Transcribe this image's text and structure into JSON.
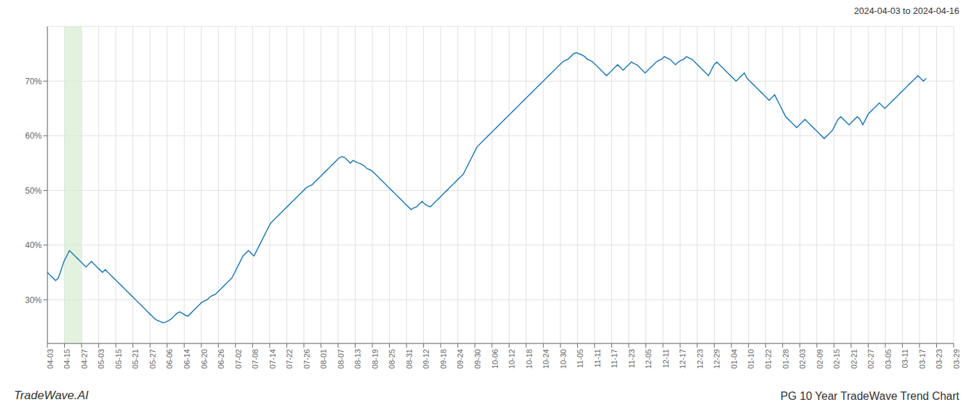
{
  "chart_data": {
    "type": "line",
    "title": "PG 10 Year TradeWave Trend Chart",
    "subtitle": "2024-04-03 to 2024-04-16",
    "annotations": [
      "TradeWave.AI"
    ],
    "color": "#1f77b4",
    "grid": true,
    "xlim": [
      0,
      329
    ],
    "xticks": [
      {
        "value": 0,
        "label": "04-03"
      },
      {
        "value": 6.2075,
        "label": "04-15"
      },
      {
        "value": 12.4151,
        "label": "04-27"
      },
      {
        "value": 18.6226,
        "label": "05-03"
      },
      {
        "value": 24.8302,
        "label": "05-15"
      },
      {
        "value": 31.0377,
        "label": "05-21"
      },
      {
        "value": 37.2453,
        "label": "05-27"
      },
      {
        "value": 43.4528,
        "label": "06-06"
      },
      {
        "value": 49.6604,
        "label": "06-14"
      },
      {
        "value": 55.8679,
        "label": "06-20"
      },
      {
        "value": 62.0755,
        "label": "06-26"
      },
      {
        "value": 68.283,
        "label": "07-02"
      },
      {
        "value": 74.4906,
        "label": "07-08"
      },
      {
        "value": 80.6981,
        "label": "07-14"
      },
      {
        "value": 86.9057,
        "label": "07-22"
      },
      {
        "value": 93.1132,
        "label": "07-26"
      },
      {
        "value": 99.3208,
        "label": "08-01"
      },
      {
        "value": 105.5283,
        "label": "08-07"
      },
      {
        "value": 111.7358,
        "label": "08-13"
      },
      {
        "value": 117.9434,
        "label": "08-19"
      },
      {
        "value": 124.1509,
        "label": "08-25"
      },
      {
        "value": 130.3585,
        "label": "08-31"
      },
      {
        "value": 136.566,
        "label": "09-12"
      },
      {
        "value": 142.7736,
        "label": "09-18"
      },
      {
        "value": 148.9811,
        "label": "09-24"
      },
      {
        "value": 155.1887,
        "label": "09-30"
      },
      {
        "value": 161.3962,
        "label": "10-06"
      },
      {
        "value": 167.6038,
        "label": "10-12"
      },
      {
        "value": 173.8113,
        "label": "10-18"
      },
      {
        "value": 180.0189,
        "label": "10-24"
      },
      {
        "value": 186.2264,
        "label": "10-30"
      },
      {
        "value": 192.434,
        "label": "11-05"
      },
      {
        "value": 198.6415,
        "label": "11-11"
      },
      {
        "value": 204.8491,
        "label": "11-17"
      },
      {
        "value": 211.0566,
        "label": "11-23"
      },
      {
        "value": 217.2642,
        "label": "12-05"
      },
      {
        "value": 223.4717,
        "label": "12-11"
      },
      {
        "value": 229.6792,
        "label": "12-17"
      },
      {
        "value": 235.8868,
        "label": "12-23"
      },
      {
        "value": 242.0943,
        "label": "12-29"
      },
      {
        "value": 248.3019,
        "label": "01-04"
      },
      {
        "value": 254.5094,
        "label": "01-10"
      },
      {
        "value": 260.717,
        "label": "01-22"
      },
      {
        "value": 266.9245,
        "label": "01-28"
      },
      {
        "value": 273.1321,
        "label": "02-03"
      },
      {
        "value": 279.3396,
        "label": "02-09"
      },
      {
        "value": 285.5472,
        "label": "02-15"
      },
      {
        "value": 291.7547,
        "label": "02-21"
      },
      {
        "value": 297.9623,
        "label": "02-27"
      },
      {
        "value": 304.1698,
        "label": "03-05"
      },
      {
        "value": 310.3774,
        "label": "03-11"
      },
      {
        "value": 316.5849,
        "label": "03-17"
      },
      {
        "value": 322.7925,
        "label": "03-23"
      },
      {
        "value": 329,
        "label": "03-29"
      }
    ],
    "ylim": [
      22,
      80
    ],
    "yticks": [
      {
        "value": 30,
        "label": "30%"
      },
      {
        "value": 40,
        "label": "40%"
      },
      {
        "value": 50,
        "label": "50%"
      },
      {
        "value": 60,
        "label": "60%"
      },
      {
        "value": 70,
        "label": "70%"
      }
    ],
    "highlight": {
      "range": [
        6.2075,
        12.4151
      ],
      "color": "#d6ecd2"
    },
    "values": [
      35.0,
      34.5,
      34.0,
      33.5,
      34.0,
      35.5,
      37.0,
      38.0,
      39.0,
      38.5,
      38.0,
      37.5,
      37.0,
      36.5,
      36.0,
      36.5,
      37.0,
      36.5,
      36.0,
      35.5,
      35.0,
      35.5,
      35.0,
      34.5,
      34.0,
      33.5,
      33.0,
      32.5,
      32.0,
      31.5,
      31.0,
      30.5,
      30.0,
      29.5,
      29.0,
      28.5,
      28.0,
      27.5,
      27.0,
      26.5,
      26.2,
      26.0,
      25.8,
      25.9,
      26.2,
      26.5,
      27.0,
      27.5,
      27.8,
      27.5,
      27.2,
      27.0,
      27.5,
      28.0,
      28.5,
      29.0,
      29.5,
      29.8,
      30.0,
      30.5,
      30.8,
      31.0,
      31.5,
      32.0,
      32.5,
      33.0,
      33.5,
      34.0,
      35.0,
      36.0,
      37.0,
      38.0,
      38.5,
      39.0,
      38.5,
      38.0,
      39.0,
      40.0,
      41.0,
      42.0,
      43.0,
      44.0,
      44.5,
      45.0,
      45.5,
      46.0,
      46.5,
      47.0,
      47.5,
      48.0,
      48.5,
      49.0,
      49.5,
      50.0,
      50.5,
      50.8,
      51.0,
      51.5,
      52.0,
      52.5,
      53.0,
      53.5,
      54.0,
      54.5,
      55.0,
      55.5,
      56.0,
      56.2,
      56.0,
      55.5,
      55.0,
      55.5,
      55.2,
      55.0,
      54.8,
      54.5,
      54.0,
      53.8,
      53.5,
      53.0,
      52.5,
      52.0,
      51.5,
      51.0,
      50.5,
      50.0,
      49.5,
      49.0,
      48.5,
      48.0,
      47.5,
      47.0,
      46.5,
      46.8,
      47.0,
      47.5,
      48.0,
      47.5,
      47.2,
      47.0,
      47.5,
      48.0,
      48.5,
      49.0,
      49.5,
      50.0,
      50.5,
      51.0,
      51.5,
      52.0,
      52.5,
      53.0,
      54.0,
      55.0,
      56.0,
      57.0,
      58.0,
      58.5,
      59.0,
      59.5,
      60.0,
      60.5,
      61.0,
      61.5,
      62.0,
      62.5,
      63.0,
      63.5,
      64.0,
      64.5,
      65.0,
      65.5,
      66.0,
      66.5,
      67.0,
      67.5,
      68.0,
      68.5,
      69.0,
      69.5,
      70.0,
      70.5,
      71.0,
      71.5,
      72.0,
      72.5,
      73.0,
      73.5,
      73.8,
      74.0,
      74.5,
      75.0,
      75.2,
      75.0,
      74.8,
      74.5,
      74.0,
      73.8,
      73.5,
      73.0,
      72.5,
      72.0,
      71.5,
      71.0,
      71.5,
      72.0,
      72.5,
      73.0,
      72.5,
      72.0,
      72.5,
      73.0,
      73.5,
      73.2,
      73.0,
      72.5,
      72.0,
      71.5,
      72.0,
      72.5,
      73.0,
      73.5,
      73.8,
      74.0,
      74.5,
      74.2,
      74.0,
      73.5,
      73.0,
      73.5,
      73.8,
      74.0,
      74.5,
      74.2,
      74.0,
      73.5,
      73.0,
      72.5,
      72.0,
      71.5,
      71.0,
      72.0,
      73.0,
      73.5,
      73.0,
      72.5,
      72.0,
      71.5,
      71.0,
      70.5,
      70.0,
      70.5,
      71.0,
      71.5,
      70.5,
      70.0,
      69.5,
      69.0,
      68.5,
      68.0,
      67.5,
      67.0,
      66.5,
      67.0,
      67.5,
      66.5,
      65.5,
      64.5,
      63.5,
      63.0,
      62.5,
      62.0,
      61.5,
      62.0,
      62.5,
      63.0,
      62.5,
      62.0,
      61.5,
      61.0,
      60.5,
      60.0,
      59.5,
      60.0,
      60.5,
      61.0,
      62.0,
      63.0,
      63.5,
      63.0,
      62.5,
      62.0,
      62.5,
      63.0,
      63.5,
      63.0,
      62.0,
      63.0,
      64.0,
      64.5,
      65.0,
      65.5,
      66.0,
      65.5,
      65.0,
      65.5,
      66.0,
      66.5,
      67.0,
      67.5,
      68.0,
      68.5,
      69.0,
      69.5,
      70.0,
      70.5,
      71.0,
      70.5,
      70.0,
      70.5
    ]
  }
}
